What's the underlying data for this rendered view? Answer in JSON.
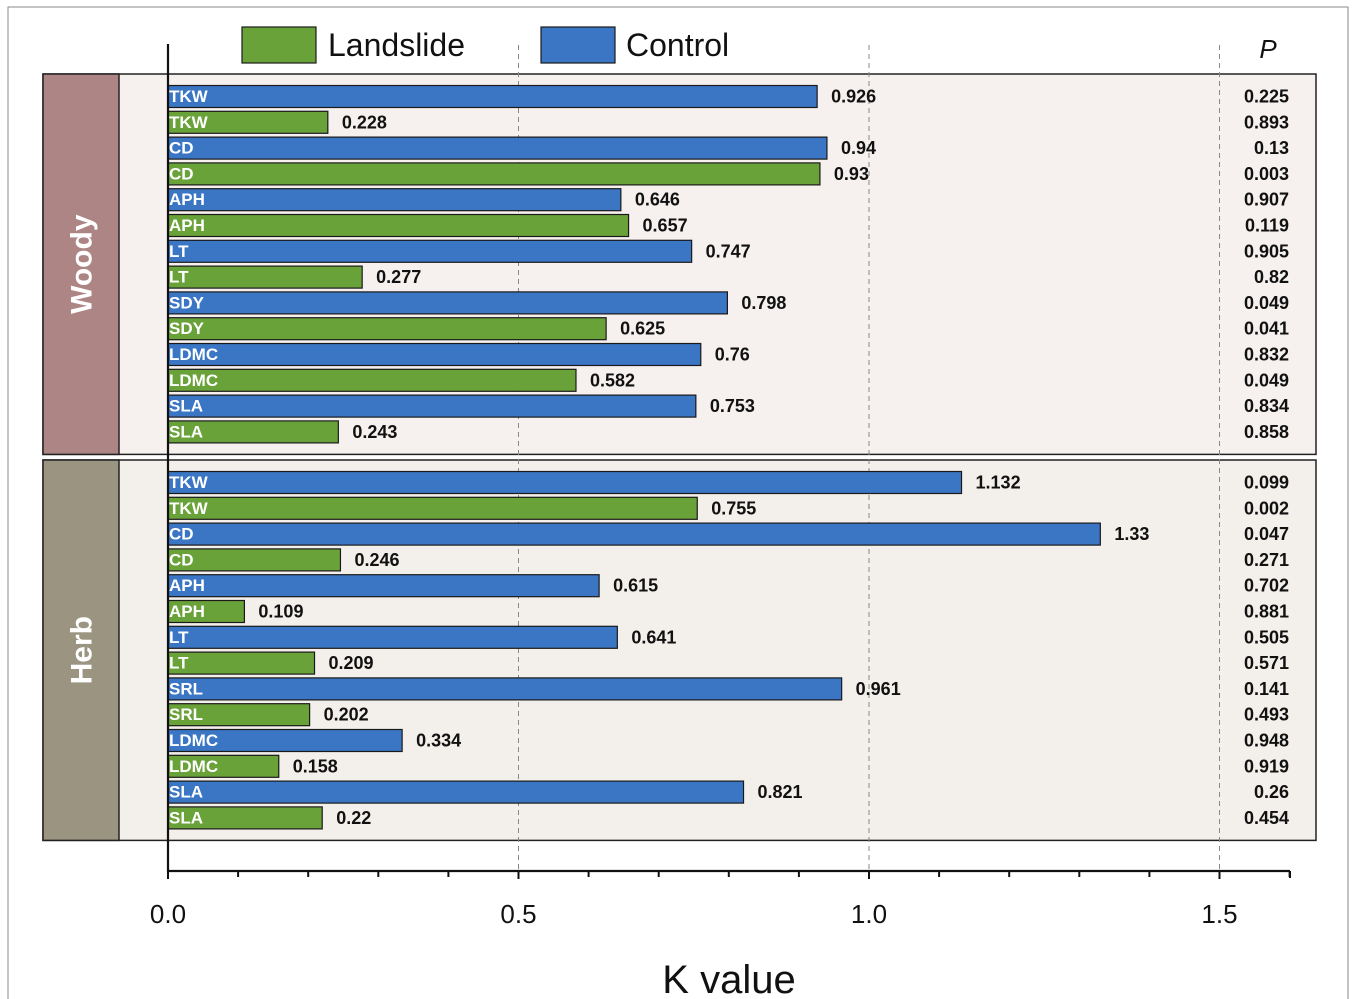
{
  "chart_data": {
    "type": "bar",
    "orientation": "horizontal",
    "xlabel": "K value",
    "xlim": [
      0,
      1.6
    ],
    "xticks": [
      "0.0",
      "0.5",
      "1.0",
      "1.5"
    ],
    "grid_x": [
      0.5,
      1.0,
      1.5
    ],
    "legend": {
      "placement": "top",
      "entries": [
        {
          "name": "Landslide",
          "color": "#6aa23a"
        },
        {
          "name": "Control",
          "color": "#3a76c4"
        }
      ]
    },
    "p_header": "P",
    "groups": [
      {
        "name": "Woody",
        "label_color": "#ad8584",
        "panel_color": "#f6f0ef",
        "bars": [
          {
            "trait": "TKW",
            "series": "Control",
            "value": 0.926,
            "value_label": "0.926",
            "p": "0.225"
          },
          {
            "trait": "TKW",
            "series": "Landslide",
            "value": 0.228,
            "value_label": "0.228",
            "p": "0.893"
          },
          {
            "trait": "CD",
            "series": "Control",
            "value": 0.94,
            "value_label": "0.94",
            "p": "0.13"
          },
          {
            "trait": "CD",
            "series": "Landslide",
            "value": 0.93,
            "value_label": "0.93",
            "p": "0.003"
          },
          {
            "trait": "APH",
            "series": "Control",
            "value": 0.646,
            "value_label": "0.646",
            "p": "0.907"
          },
          {
            "trait": "APH",
            "series": "Landslide",
            "value": 0.657,
            "value_label": "0.657",
            "p": "0.119"
          },
          {
            "trait": "LT",
            "series": "Control",
            "value": 0.747,
            "value_label": "0.747",
            "p": "0.905"
          },
          {
            "trait": "LT",
            "series": "Landslide",
            "value": 0.277,
            "value_label": "0.277",
            "p": "0.82"
          },
          {
            "trait": "SDY",
            "series": "Control",
            "value": 0.798,
            "value_label": "0.798",
            "p": "0.049"
          },
          {
            "trait": "SDY",
            "series": "Landslide",
            "value": 0.625,
            "value_label": "0.625",
            "p": "0.041"
          },
          {
            "trait": "LDMC",
            "series": "Control",
            "value": 0.76,
            "value_label": "0.76",
            "p": "0.832"
          },
          {
            "trait": "LDMC",
            "series": "Landslide",
            "value": 0.582,
            "value_label": "0.582",
            "p": "0.049"
          },
          {
            "trait": "SLA",
            "series": "Control",
            "value": 0.753,
            "value_label": "0.753",
            "p": "0.834"
          },
          {
            "trait": "SLA",
            "series": "Landslide",
            "value": 0.243,
            "value_label": "0.243",
            "p": "0.858"
          }
        ]
      },
      {
        "name": "Herb",
        "label_color": "#9a9480",
        "panel_color": "#f3efea",
        "bars": [
          {
            "trait": "TKW",
            "series": "Control",
            "value": 1.132,
            "value_label": "1.132",
            "p": "0.099"
          },
          {
            "trait": "TKW",
            "series": "Landslide",
            "value": 0.755,
            "value_label": "0.755",
            "p": "0.002"
          },
          {
            "trait": "CD",
            "series": "Control",
            "value": 1.33,
            "value_label": "1.33",
            "p": "0.047"
          },
          {
            "trait": "CD",
            "series": "Landslide",
            "value": 0.246,
            "value_label": "0.246",
            "p": "0.271"
          },
          {
            "trait": "APH",
            "series": "Control",
            "value": 0.615,
            "value_label": "0.615",
            "p": "0.702"
          },
          {
            "trait": "APH",
            "series": "Landslide",
            "value": 0.109,
            "value_label": "0.109",
            "p": "0.881"
          },
          {
            "trait": "LT",
            "series": "Control",
            "value": 0.641,
            "value_label": "0.641",
            "p": "0.505"
          },
          {
            "trait": "LT",
            "series": "Landslide",
            "value": 0.209,
            "value_label": "0.209",
            "p": "0.571"
          },
          {
            "trait": "SRL",
            "series": "Control",
            "value": 0.961,
            "value_label": "0.961",
            "p": "0.141"
          },
          {
            "trait": "SRL",
            "series": "Landslide",
            "value": 0.202,
            "value_label": "0.202",
            "p": "0.493"
          },
          {
            "trait": "LDMC",
            "series": "Control",
            "value": 0.334,
            "value_label": "0.334",
            "p": "0.948"
          },
          {
            "trait": "LDMC",
            "series": "Landslide",
            "value": 0.158,
            "value_label": "0.158",
            "p": "0.919"
          },
          {
            "trait": "SLA",
            "series": "Control",
            "value": 0.821,
            "value_label": "0.821",
            "p": "0.26"
          },
          {
            "trait": "SLA",
            "series": "Landslide",
            "value": 0.22,
            "value_label": "0.22",
            "p": "0.454"
          }
        ]
      }
    ]
  }
}
